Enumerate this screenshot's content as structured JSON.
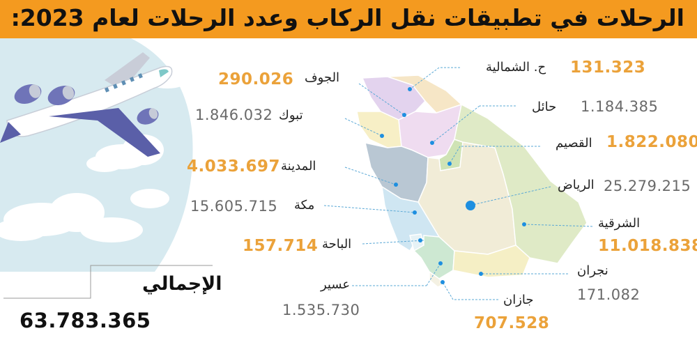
{
  "title": "الرحلات في تطبيقات نقل الركاب وعدد الرحلات لعام 2023:",
  "colors": {
    "banner": "#f49a1f",
    "highlight_value": "#eba23a",
    "plain_value": "#6a6a6a",
    "marker": "#1e8fe0"
  },
  "icons": [
    "airplane-illustration",
    "cloud-illustration"
  ],
  "regions": [
    {
      "id": "northern-borders",
      "name": "ح. الشمالية",
      "value": "131.323",
      "highlight": true
    },
    {
      "id": "jouf",
      "name": "الجوف",
      "value": "290.026",
      "highlight": true
    },
    {
      "id": "hail",
      "name": "حائل",
      "value": "1.184.385",
      "highlight": false
    },
    {
      "id": "tabuk",
      "name": "تبوك",
      "value": "1.846.032",
      "highlight": false
    },
    {
      "id": "qassim",
      "name": "القصيم",
      "value": "1.822.080",
      "highlight": true
    },
    {
      "id": "madinah",
      "name": "المدينة",
      "value": "4.033.697",
      "highlight": true
    },
    {
      "id": "riyadh",
      "name": "الرياض",
      "value": "25.279.215",
      "highlight": false
    },
    {
      "id": "makkah",
      "name": "مكة",
      "value": "15.605.715",
      "highlight": false
    },
    {
      "id": "eastern",
      "name": "الشرقية",
      "value": "11.018.838",
      "highlight": true
    },
    {
      "id": "baha",
      "name": "الباحة",
      "value": "157.714",
      "highlight": true
    },
    {
      "id": "najran",
      "name": "نجران",
      "value": "171.082",
      "highlight": false
    },
    {
      "id": "asir",
      "name": "عسير",
      "value": "1.535.730",
      "highlight": false
    },
    {
      "id": "jazan",
      "name": "جازان",
      "value": "707.528",
      "highlight": true
    }
  ],
  "total": {
    "label": "الإجمالي",
    "value": "63.783.365"
  }
}
